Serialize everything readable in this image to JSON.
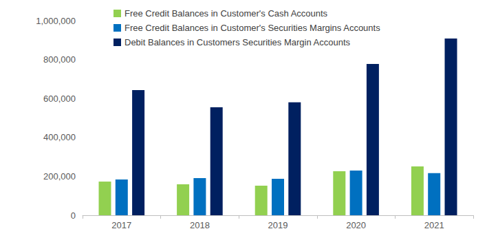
{
  "chart_data": {
    "type": "bar",
    "categories": [
      "2017",
      "2018",
      "2019",
      "2020",
      "2021"
    ],
    "series": [
      {
        "name": "Free Credit Balances in Customer's Cash Accounts",
        "color": "#92d050",
        "values": [
          173000,
          159000,
          152000,
          226000,
          251000
        ]
      },
      {
        "name": "Free Credit Balances in Customer's Securities Margins Accounts",
        "color": "#0070c0",
        "values": [
          184000,
          191000,
          187000,
          230000,
          216000
        ]
      },
      {
        "name": "Debit Balances in Customers Securities Margin Accounts",
        "color": "#002060",
        "values": [
          643000,
          555000,
          580000,
          777000,
          908000
        ]
      }
    ],
    "ylim": [
      0,
      1000000
    ],
    "yticks": [
      0,
      {
        "value": 200000,
        "label": "200,000"
      },
      {
        "value": 400000,
        "label": "400,000"
      },
      {
        "value": 600000,
        "label": "600,000"
      },
      {
        "value": 800000,
        "label": "800,000"
      },
      {
        "value": 1000000,
        "label": "1,000,000"
      }
    ],
    "grid": false,
    "legend": "upper left"
  }
}
